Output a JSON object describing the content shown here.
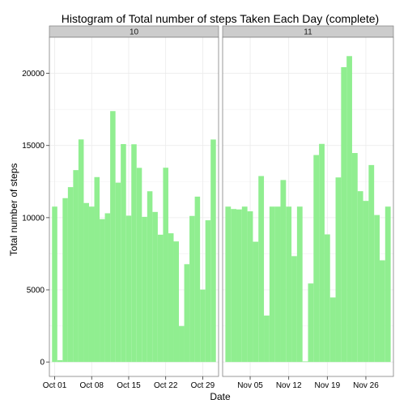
{
  "chart_data": {
    "type": "bar",
    "title": "Histogram of Total number of steps Taken Each Day (complete)",
    "xlabel": "Date",
    "ylabel": "Total number of steps",
    "ylim": [
      -1000,
      22500
    ],
    "yticks": [
      0,
      5000,
      10000,
      15000,
      20000
    ],
    "grid": true,
    "bar_color": "#90EE90",
    "panel_border_color": "#7f7f7f",
    "strip_fill": "#cccccc",
    "gridline_color": "#ebebeb",
    "panels": [
      {
        "strip_label": "10",
        "xrange": [
          "2012-09-30",
          "2012-11-01"
        ],
        "xticks": [
          {
            "date": "2012-10-01",
            "label": "Oct 01"
          },
          {
            "date": "2012-10-08",
            "label": "Oct 08"
          },
          {
            "date": "2012-10-15",
            "label": "Oct 15"
          },
          {
            "date": "2012-10-22",
            "label": "Oct 22"
          },
          {
            "date": "2012-10-29",
            "label": "Oct 29"
          }
        ],
        "bars": [
          {
            "date": "2012-10-01",
            "value": 10766
          },
          {
            "date": "2012-10-02",
            "value": 126
          },
          {
            "date": "2012-10-03",
            "value": 11352
          },
          {
            "date": "2012-10-04",
            "value": 12116
          },
          {
            "date": "2012-10-05",
            "value": 13294
          },
          {
            "date": "2012-10-06",
            "value": 15420
          },
          {
            "date": "2012-10-07",
            "value": 11015
          },
          {
            "date": "2012-10-08",
            "value": 10766
          },
          {
            "date": "2012-10-09",
            "value": 12811
          },
          {
            "date": "2012-10-10",
            "value": 9900
          },
          {
            "date": "2012-10-11",
            "value": 10304
          },
          {
            "date": "2012-10-12",
            "value": 17382
          },
          {
            "date": "2012-10-13",
            "value": 12426
          },
          {
            "date": "2012-10-14",
            "value": 15098
          },
          {
            "date": "2012-10-15",
            "value": 10139
          },
          {
            "date": "2012-10-16",
            "value": 15084
          },
          {
            "date": "2012-10-17",
            "value": 13452
          },
          {
            "date": "2012-10-18",
            "value": 10056
          },
          {
            "date": "2012-10-19",
            "value": 11829
          },
          {
            "date": "2012-10-20",
            "value": 10395
          },
          {
            "date": "2012-10-21",
            "value": 8821
          },
          {
            "date": "2012-10-22",
            "value": 13460
          },
          {
            "date": "2012-10-23",
            "value": 8918
          },
          {
            "date": "2012-10-24",
            "value": 8355
          },
          {
            "date": "2012-10-25",
            "value": 2492
          },
          {
            "date": "2012-10-26",
            "value": 6778
          },
          {
            "date": "2012-10-27",
            "value": 10119
          },
          {
            "date": "2012-10-28",
            "value": 11458
          },
          {
            "date": "2012-10-29",
            "value": 5018
          },
          {
            "date": "2012-10-30",
            "value": 9819
          },
          {
            "date": "2012-10-31",
            "value": 15414
          }
        ]
      },
      {
        "strip_label": "11",
        "xrange": [
          "2012-10-31",
          "2012-12-01"
        ],
        "xticks": [
          {
            "date": "2012-11-05",
            "label": "Nov 05"
          },
          {
            "date": "2012-11-12",
            "label": "Nov 12"
          },
          {
            "date": "2012-11-19",
            "label": "Nov 19"
          },
          {
            "date": "2012-11-26",
            "label": "Nov 26"
          }
        ],
        "bars": [
          {
            "date": "2012-11-01",
            "value": 10766
          },
          {
            "date": "2012-11-02",
            "value": 10600
          },
          {
            "date": "2012-11-03",
            "value": 10571
          },
          {
            "date": "2012-11-04",
            "value": 10766
          },
          {
            "date": "2012-11-05",
            "value": 10439
          },
          {
            "date": "2012-11-06",
            "value": 8334
          },
          {
            "date": "2012-11-07",
            "value": 12883
          },
          {
            "date": "2012-11-08",
            "value": 3219
          },
          {
            "date": "2012-11-09",
            "value": 10766
          },
          {
            "date": "2012-11-10",
            "value": 10766
          },
          {
            "date": "2012-11-11",
            "value": 12608
          },
          {
            "date": "2012-11-12",
            "value": 10765
          },
          {
            "date": "2012-11-13",
            "value": 7336
          },
          {
            "date": "2012-11-14",
            "value": 10766
          },
          {
            "date": "2012-11-15",
            "value": 41
          },
          {
            "date": "2012-11-16",
            "value": 5441
          },
          {
            "date": "2012-11-17",
            "value": 14339
          },
          {
            "date": "2012-11-18",
            "value": 15110
          },
          {
            "date": "2012-11-19",
            "value": 8841
          },
          {
            "date": "2012-11-20",
            "value": 4472
          },
          {
            "date": "2012-11-21",
            "value": 12787
          },
          {
            "date": "2012-11-22",
            "value": 20427
          },
          {
            "date": "2012-11-23",
            "value": 21194
          },
          {
            "date": "2012-11-24",
            "value": 14478
          },
          {
            "date": "2012-11-25",
            "value": 11834
          },
          {
            "date": "2012-11-26",
            "value": 11162
          },
          {
            "date": "2012-11-27",
            "value": 13646
          },
          {
            "date": "2012-11-28",
            "value": 10183
          },
          {
            "date": "2012-11-29",
            "value": 7047
          },
          {
            "date": "2012-11-30",
            "value": 10766
          }
        ]
      }
    ]
  }
}
